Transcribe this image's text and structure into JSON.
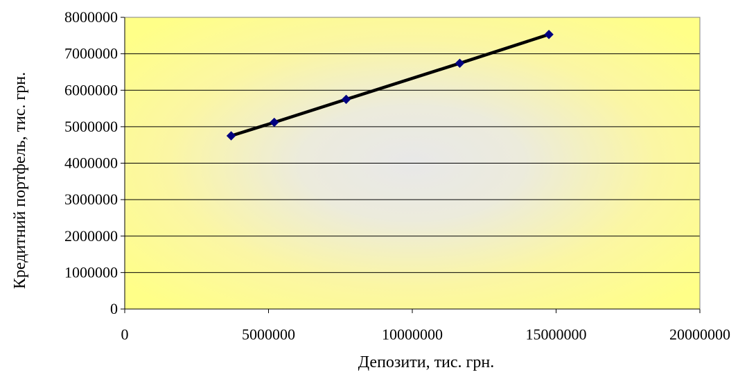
{
  "chart_data": {
    "type": "line",
    "title": "",
    "xlabel": "Депозити, тис. грн.",
    "ylabel": "Кредитний портфель, тис. грн.",
    "xlim": [
      0,
      20000000
    ],
    "ylim": [
      0,
      8000000
    ],
    "x_ticks": [
      "0",
      "5000000",
      "10000000",
      "15000000",
      "20000000"
    ],
    "y_ticks": [
      "0",
      "1000000",
      "2000000",
      "3000000",
      "4000000",
      "5000000",
      "6000000",
      "7000000",
      "8000000"
    ],
    "grid": "horizontal",
    "background": "yellow-radial-gradient",
    "legend": "none",
    "series": [
      {
        "points": [
          {
            "x": 3700000,
            "y": 4750000
          },
          {
            "x": 5200000,
            "y": 5120000
          },
          {
            "x": 7700000,
            "y": 5750000
          },
          {
            "x": 11650000,
            "y": 6740000
          },
          {
            "x": 14750000,
            "y": 7530000
          }
        ],
        "line_color": "#000000",
        "marker_color": "#000080",
        "marker": "diamond"
      }
    ]
  }
}
